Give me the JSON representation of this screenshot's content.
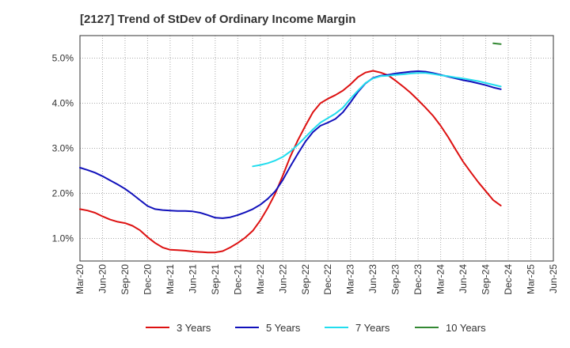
{
  "chart_data": {
    "type": "line",
    "title": "[2127]  Trend of StDev of Ordinary Income Margin",
    "xlabel": "",
    "ylabel": "",
    "ylim": [
      0.005,
      0.055
    ],
    "y_ticks": [
      {
        "value": 0.01,
        "label": "1.0%"
      },
      {
        "value": 0.02,
        "label": "2.0%"
      },
      {
        "value": 0.03,
        "label": "3.0%"
      },
      {
        "value": 0.04,
        "label": "4.0%"
      },
      {
        "value": 0.05,
        "label": "5.0%"
      }
    ],
    "x_ticks": [
      "Mar-20",
      "Jun-20",
      "Sep-20",
      "Dec-20",
      "Mar-21",
      "Jun-21",
      "Sep-21",
      "Dec-21",
      "Mar-22",
      "Jun-22",
      "Sep-22",
      "Dec-22",
      "Mar-23",
      "Jun-23",
      "Sep-23",
      "Dec-23",
      "Mar-24",
      "Jun-24",
      "Sep-24",
      "Dec-24",
      "Mar-25",
      "Jun-25"
    ],
    "grid": "dotted, both axes",
    "legend_position": "bottom",
    "series": [
      {
        "name": "3 Years",
        "color": "#dd1111",
        "points": [
          [
            "Mar-20",
            0.0165
          ],
          [
            "Apr-20",
            0.0162
          ],
          [
            "May-20",
            0.0157
          ],
          [
            "Jun-20",
            0.0149
          ],
          [
            "Jul-20",
            0.0142
          ],
          [
            "Aug-20",
            0.0137
          ],
          [
            "Sep-20",
            0.0134
          ],
          [
            "Oct-20",
            0.0128
          ],
          [
            "Nov-20",
            0.0118
          ],
          [
            "Dec-20",
            0.0103
          ],
          [
            "Jan-21",
            0.009
          ],
          [
            "Feb-21",
            0.008
          ],
          [
            "Mar-21",
            0.0075
          ],
          [
            "Apr-21",
            0.0074
          ],
          [
            "May-21",
            0.0073
          ],
          [
            "Jun-21",
            0.0071
          ],
          [
            "Jul-21",
            0.007
          ],
          [
            "Aug-21",
            0.0069
          ],
          [
            "Sep-21",
            0.0069
          ],
          [
            "Oct-21",
            0.0072
          ],
          [
            "Nov-21",
            0.008
          ],
          [
            "Dec-21",
            0.009
          ],
          [
            "Jan-22",
            0.0102
          ],
          [
            "Feb-22",
            0.0117
          ],
          [
            "Mar-22",
            0.014
          ],
          [
            "Apr-22",
            0.0168
          ],
          [
            "May-22",
            0.02
          ],
          [
            "Jun-22",
            0.024
          ],
          [
            "Jul-22",
            0.0282
          ],
          [
            "Aug-22",
            0.0318
          ],
          [
            "Sep-22",
            0.035
          ],
          [
            "Oct-22",
            0.038
          ],
          [
            "Nov-22",
            0.04
          ],
          [
            "Dec-22",
            0.041
          ],
          [
            "Jan-23",
            0.0418
          ],
          [
            "Feb-23",
            0.0428
          ],
          [
            "Mar-23",
            0.0442
          ],
          [
            "Apr-23",
            0.0458
          ],
          [
            "May-23",
            0.0468
          ],
          [
            "Jun-23",
            0.0472
          ],
          [
            "Jul-23",
            0.0468
          ],
          [
            "Aug-23",
            0.0462
          ],
          [
            "Sep-23",
            0.045
          ],
          [
            "Oct-23",
            0.0437
          ],
          [
            "Nov-23",
            0.0423
          ],
          [
            "Dec-23",
            0.0407
          ],
          [
            "Jan-24",
            0.039
          ],
          [
            "Feb-24",
            0.0372
          ],
          [
            "Mar-24",
            0.035
          ],
          [
            "Apr-24",
            0.0325
          ],
          [
            "May-24",
            0.0297
          ],
          [
            "Jun-24",
            0.027
          ],
          [
            "Jul-24",
            0.0247
          ],
          [
            "Aug-24",
            0.0225
          ],
          [
            "Sep-24",
            0.0205
          ],
          [
            "Oct-24",
            0.0185
          ],
          [
            "Nov-24",
            0.0173
          ]
        ]
      },
      {
        "name": "5 Years",
        "color": "#1111bb",
        "points": [
          [
            "Mar-20",
            0.0257
          ],
          [
            "Apr-20",
            0.0252
          ],
          [
            "May-20",
            0.0246
          ],
          [
            "Jun-20",
            0.0238
          ],
          [
            "Jul-20",
            0.0229
          ],
          [
            "Aug-20",
            0.022
          ],
          [
            "Sep-20",
            0.021
          ],
          [
            "Oct-20",
            0.0198
          ],
          [
            "Nov-20",
            0.0185
          ],
          [
            "Dec-20",
            0.0172
          ],
          [
            "Jan-21",
            0.0165
          ],
          [
            "Feb-21",
            0.0163
          ],
          [
            "Mar-21",
            0.0162
          ],
          [
            "Apr-21",
            0.0161
          ],
          [
            "May-21",
            0.0161
          ],
          [
            "Jun-21",
            0.016
          ],
          [
            "Jul-21",
            0.0157
          ],
          [
            "Aug-21",
            0.0152
          ],
          [
            "Sep-21",
            0.0146
          ],
          [
            "Oct-21",
            0.0145
          ],
          [
            "Nov-21",
            0.0147
          ],
          [
            "Dec-21",
            0.0152
          ],
          [
            "Jan-22",
            0.0158
          ],
          [
            "Feb-22",
            0.0165
          ],
          [
            "Mar-22",
            0.0175
          ],
          [
            "Apr-22",
            0.0188
          ],
          [
            "May-22",
            0.0205
          ],
          [
            "Jun-22",
            0.023
          ],
          [
            "Jul-22",
            0.026
          ],
          [
            "Aug-22",
            0.0288
          ],
          [
            "Sep-22",
            0.0315
          ],
          [
            "Oct-22",
            0.0336
          ],
          [
            "Nov-22",
            0.035
          ],
          [
            "Dec-22",
            0.0357
          ],
          [
            "Jan-23",
            0.0365
          ],
          [
            "Feb-23",
            0.038
          ],
          [
            "Mar-23",
            0.0402
          ],
          [
            "Apr-23",
            0.0425
          ],
          [
            "May-23",
            0.0444
          ],
          [
            "Jun-23",
            0.0456
          ],
          [
            "Jul-23",
            0.0461
          ],
          [
            "Aug-23",
            0.0463
          ],
          [
            "Sep-23",
            0.0466
          ],
          [
            "Oct-23",
            0.0468
          ],
          [
            "Nov-23",
            0.047
          ],
          [
            "Dec-23",
            0.0471
          ],
          [
            "Jan-24",
            0.047
          ],
          [
            "Feb-24",
            0.0467
          ],
          [
            "Mar-24",
            0.0463
          ],
          [
            "Apr-24",
            0.0459
          ],
          [
            "May-24",
            0.0455
          ],
          [
            "Jun-24",
            0.0451
          ],
          [
            "Jul-24",
            0.0448
          ],
          [
            "Aug-24",
            0.0444
          ],
          [
            "Sep-24",
            0.044
          ],
          [
            "Oct-24",
            0.0435
          ],
          [
            "Nov-24",
            0.0431
          ]
        ]
      },
      {
        "name": "7 Years",
        "color": "#22ddee",
        "points": [
          [
            "Feb-22",
            0.026
          ],
          [
            "Mar-22",
            0.0263
          ],
          [
            "Apr-22",
            0.0267
          ],
          [
            "May-22",
            0.0273
          ],
          [
            "Jun-22",
            0.0281
          ],
          [
            "Jul-22",
            0.0293
          ],
          [
            "Aug-22",
            0.0308
          ],
          [
            "Sep-22",
            0.0325
          ],
          [
            "Oct-22",
            0.0342
          ],
          [
            "Nov-22",
            0.0357
          ],
          [
            "Dec-22",
            0.0367
          ],
          [
            "Jan-23",
            0.0377
          ],
          [
            "Feb-23",
            0.039
          ],
          [
            "Mar-23",
            0.041
          ],
          [
            "Apr-23",
            0.0428
          ],
          [
            "May-23",
            0.0445
          ],
          [
            "Jun-23",
            0.0455
          ],
          [
            "Jul-23",
            0.046
          ],
          [
            "Aug-23",
            0.0461
          ],
          [
            "Sep-23",
            0.0463
          ],
          [
            "Oct-23",
            0.0464
          ],
          [
            "Nov-23",
            0.0466
          ],
          [
            "Dec-23",
            0.0467
          ],
          [
            "Jan-24",
            0.0467
          ],
          [
            "Feb-24",
            0.0465
          ],
          [
            "Mar-24",
            0.0462
          ],
          [
            "Apr-24",
            0.046
          ],
          [
            "May-24",
            0.0457
          ],
          [
            "Jun-24",
            0.0455
          ],
          [
            "Jul-24",
            0.0452
          ],
          [
            "Aug-24",
            0.0449
          ],
          [
            "Sep-24",
            0.0445
          ],
          [
            "Oct-24",
            0.0441
          ],
          [
            "Nov-24",
            0.0437
          ]
        ]
      },
      {
        "name": "10 Years",
        "color": "#338833",
        "points": [
          [
            "Oct-24",
            0.0533
          ],
          [
            "Nov-24",
            0.0531
          ]
        ]
      }
    ]
  }
}
